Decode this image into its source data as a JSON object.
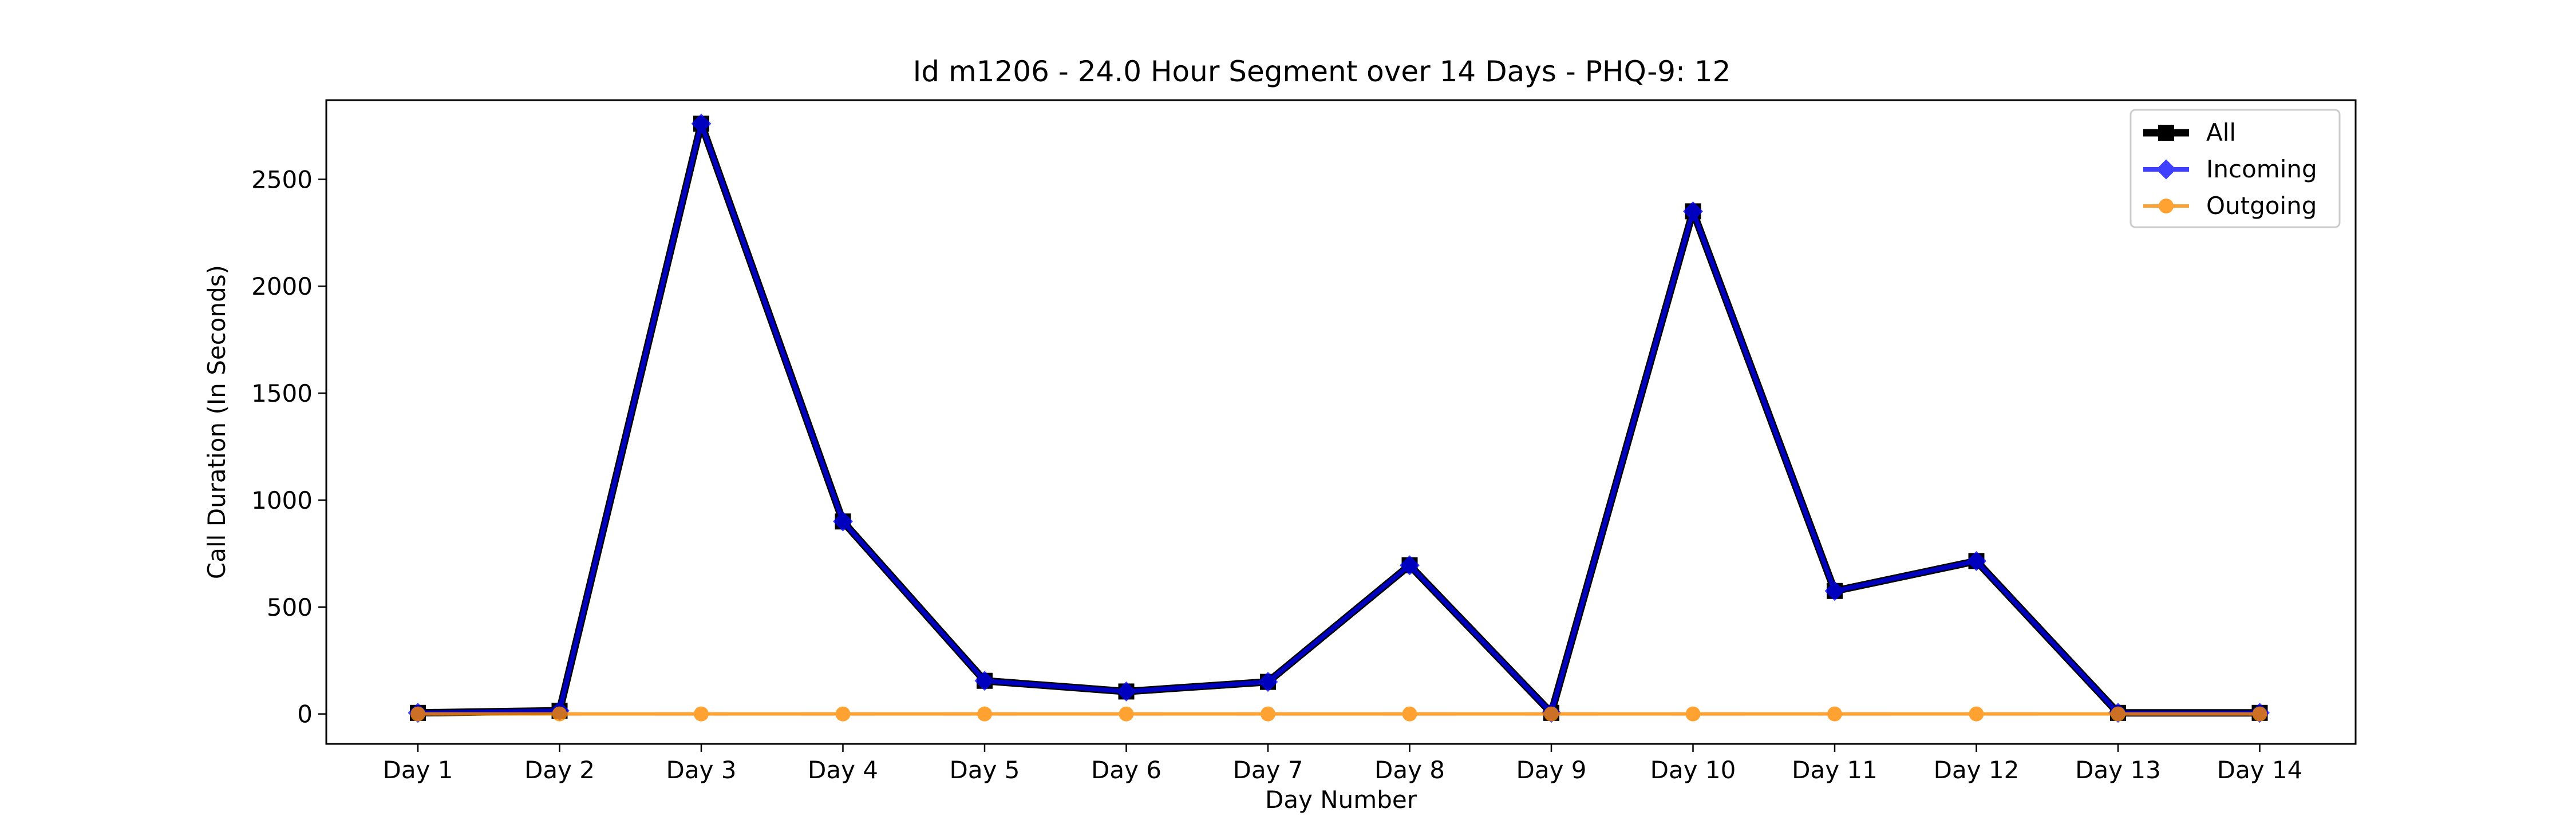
{
  "chart_data": {
    "type": "line",
    "title": "Id m1206 - 24.0 Hour Segment over 14 Days - PHQ-9: 12",
    "xlabel": "Day Number",
    "ylabel": "Call Duration (In Seconds)",
    "categories": [
      "Day 1",
      "Day 2",
      "Day 3",
      "Day 4",
      "Day 5",
      "Day 6",
      "Day 7",
      "Day 8",
      "Day 9",
      "Day 10",
      "Day 11",
      "Day 12",
      "Day 13",
      "Day 14"
    ],
    "ylim": [
      -140,
      2870
    ],
    "yticks": [
      0,
      500,
      1000,
      1500,
      2000,
      2500
    ],
    "grid": false,
    "legend_position": "top-right",
    "series": [
      {
        "name": "All",
        "color": "#000000",
        "marker": "square",
        "values": [
          5,
          15,
          2760,
          900,
          155,
          105,
          150,
          695,
          5,
          2350,
          575,
          715,
          5,
          5
        ]
      },
      {
        "name": "Incoming",
        "color": "#0000ff",
        "marker": "diamond",
        "values": [
          5,
          15,
          2760,
          900,
          155,
          105,
          150,
          695,
          5,
          2350,
          575,
          715,
          5,
          5
        ]
      },
      {
        "name": "Outgoing",
        "color": "#ff8c00",
        "marker": "circle",
        "values": [
          0,
          0,
          0,
          0,
          0,
          0,
          0,
          0,
          0,
          0,
          0,
          0,
          0,
          0
        ]
      }
    ]
  }
}
